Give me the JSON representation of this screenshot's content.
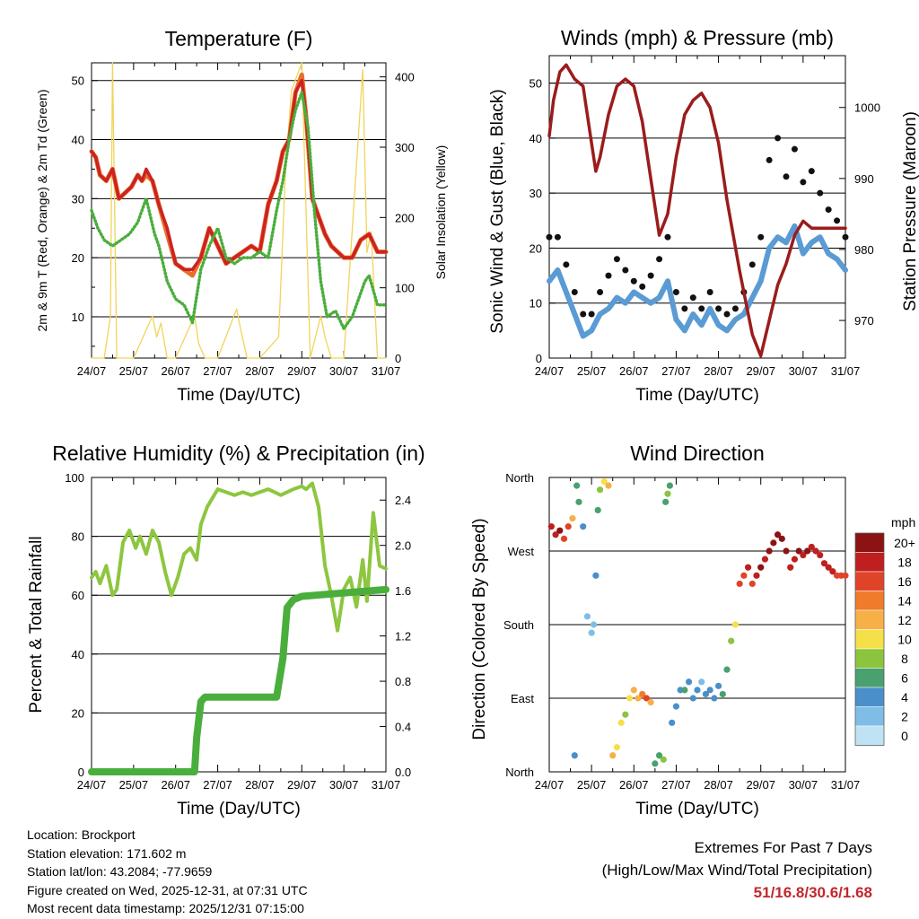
{
  "chart_data": [
    {
      "type": "line",
      "title": "Temperature (F)",
      "xlabel": "Time (Day/UTC)",
      "ylabel": "2m & 9m T (Red, Orange) & 2m Td (Green)",
      "ylabel_right": "Solar Insolation (Yellow)",
      "x_ticks": [
        "24/07",
        "25/07",
        "26/07",
        "27/07",
        "28/07",
        "29/07",
        "30/07",
        "31/07"
      ],
      "ylim": [
        3,
        53
      ],
      "yticks": [
        10,
        20,
        30,
        40,
        50
      ],
      "ylim_right": [
        0,
        420
      ],
      "yticks_right": [
        0,
        100,
        200,
        300,
        400
      ],
      "series": [
        {
          "name": "2m T",
          "color": "#e8702a",
          "x": [
            0,
            0.1,
            0.2,
            0.35,
            0.5,
            0.65,
            0.8,
            0.95,
            1.1,
            1.2,
            1.3,
            1.45,
            1.6,
            1.8,
            2.0,
            2.2,
            2.4,
            2.6,
            2.8,
            3.0,
            3.2,
            3.4,
            3.6,
            3.8,
            4.0,
            4.2,
            4.4,
            4.55,
            4.7,
            4.85,
            5.0,
            5.1,
            5.25,
            5.4,
            5.55,
            5.7,
            5.85,
            6.0,
            6.2,
            6.4,
            6.6,
            6.8,
            7.0
          ],
          "values": [
            38,
            37,
            34,
            33,
            35,
            30,
            31,
            32,
            34,
            33,
            34,
            33,
            29,
            24,
            19,
            18,
            17,
            20,
            25,
            22,
            19,
            20,
            21,
            22,
            21,
            29,
            33,
            38,
            40,
            48,
            51,
            44,
            30,
            27,
            24,
            22,
            21,
            20,
            20,
            23,
            24,
            21,
            21
          ]
        },
        {
          "name": "9m T",
          "color": "#cc2222",
          "x": [
            0,
            0.1,
            0.2,
            0.35,
            0.5,
            0.65,
            0.8,
            0.95,
            1.1,
            1.2,
            1.3,
            1.45,
            1.6,
            1.8,
            2.0,
            2.2,
            2.4,
            2.6,
            2.8,
            3.0,
            3.2,
            3.4,
            3.6,
            3.8,
            4.0,
            4.2,
            4.4,
            4.55,
            4.7,
            4.85,
            5.0,
            5.1,
            5.25,
            5.4,
            5.55,
            5.7,
            5.85,
            6.0,
            6.2,
            6.4,
            6.6,
            6.8,
            7.0
          ],
          "values": [
            38,
            37,
            34,
            33,
            35,
            30,
            31,
            32,
            34,
            33,
            35,
            33,
            29,
            25,
            19,
            18,
            18,
            20,
            25,
            22,
            19,
            20,
            21,
            22,
            21,
            29,
            33,
            38,
            40,
            48,
            50,
            44,
            30,
            27,
            24,
            22,
            21,
            20,
            20,
            23,
            24,
            21,
            21
          ]
        },
        {
          "name": "2m Td",
          "color": "#4aae3c",
          "x": [
            0,
            0.15,
            0.3,
            0.5,
            0.7,
            0.9,
            1.1,
            1.3,
            1.5,
            1.6,
            1.8,
            2.0,
            2.2,
            2.4,
            2.6,
            2.8,
            3.0,
            3.2,
            3.4,
            3.6,
            3.8,
            4.0,
            4.2,
            4.4,
            4.55,
            4.7,
            4.85,
            5.0,
            5.15,
            5.3,
            5.45,
            5.6,
            5.8,
            6.0,
            6.2,
            6.4,
            6.5,
            6.6,
            6.8,
            7.0
          ],
          "values": [
            28,
            25,
            23,
            22,
            23,
            24,
            26,
            30,
            24,
            22,
            16,
            13,
            12,
            9,
            18,
            22,
            25,
            20,
            19,
            20,
            20,
            21,
            20,
            28,
            33,
            40,
            45,
            48,
            42,
            28,
            16,
            10,
            11,
            8,
            10,
            14,
            16,
            17,
            12,
            12
          ]
        },
        {
          "name": "Solar Insolation",
          "color": "#f2d35a",
          "axis": "right",
          "x": [
            0,
            0.3,
            0.45,
            0.5,
            0.6,
            1.0,
            1.45,
            1.55,
            1.65,
            1.8,
            2.0,
            2.45,
            2.55,
            2.7,
            3.0,
            3.45,
            3.55,
            3.7,
            4.0,
            4.45,
            4.6,
            4.75,
            5.0,
            5.2,
            5.45,
            5.55,
            5.7,
            6.0,
            6.45,
            6.55,
            6.65,
            6.8,
            7.0
          ],
          "values": [
            0,
            0,
            60,
            420,
            0,
            0,
            60,
            30,
            50,
            0,
            0,
            60,
            20,
            0,
            0,
            70,
            40,
            0,
            0,
            30,
            250,
            380,
            420,
            0,
            60,
            30,
            0,
            0,
            410,
            150,
            180,
            0,
            0
          ]
        }
      ]
    },
    {
      "type": "line",
      "title": "Winds (mph) & Pressure (mb)",
      "xlabel": "Time (Day/UTC)",
      "ylabel": "Sonic Wind & Gust (Blue, Black)",
      "ylabel_right": "Station Pressure (Maroon)",
      "x_ticks": [
        "24/07",
        "25/07",
        "26/07",
        "27/07",
        "28/07",
        "29/07",
        "30/07",
        "31/07"
      ],
      "ylim": [
        0,
        55
      ],
      "yticks": [
        0,
        10,
        20,
        30,
        40,
        50
      ],
      "ylim_right": [
        964.7,
        1007.3
      ],
      "yticks_right": [
        970,
        980,
        990,
        1000
      ],
      "series": [
        {
          "name": "Sonic Wind",
          "color": "#5a9bd4",
          "x": [
            0,
            0.2,
            0.4,
            0.6,
            0.8,
            1.0,
            1.2,
            1.4,
            1.6,
            1.8,
            2.0,
            2.2,
            2.4,
            2.6,
            2.8,
            3.0,
            3.2,
            3.4,
            3.6,
            3.8,
            4.0,
            4.2,
            4.4,
            4.6,
            4.8,
            5.0,
            5.2,
            5.4,
            5.6,
            5.8,
            6.0,
            6.2,
            6.4,
            6.6,
            6.8,
            7.0
          ],
          "values": [
            14,
            16,
            12,
            8,
            4,
            5,
            8,
            9,
            11,
            10,
            12,
            11,
            10,
            11,
            14,
            7,
            5,
            8,
            6,
            9,
            6,
            5,
            7,
            8,
            11,
            14,
            20,
            22,
            21,
            24,
            19,
            21,
            22,
            19,
            18,
            16
          ]
        },
        {
          "name": "Gust",
          "color": "#111111",
          "x": [
            0,
            0.2,
            0.4,
            0.6,
            0.8,
            1.0,
            1.2,
            1.4,
            1.6,
            1.8,
            2.0,
            2.2,
            2.4,
            2.6,
            2.8,
            3.0,
            3.2,
            3.4,
            3.6,
            3.8,
            4.0,
            4.2,
            4.4,
            4.6,
            4.8,
            5.0,
            5.2,
            5.4,
            5.6,
            5.8,
            6.0,
            6.2,
            6.4,
            6.6,
            6.8,
            7.0
          ],
          "values": [
            22,
            22,
            17,
            12,
            8,
            8,
            12,
            15,
            18,
            16,
            14,
            13,
            15,
            18,
            22,
            12,
            9,
            11,
            9,
            12,
            9,
            8,
            9,
            12,
            17,
            22,
            36,
            40,
            33,
            38,
            32,
            34,
            30,
            27,
            25,
            22
          ]
        },
        {
          "name": "Station Pressure",
          "color": "#9b1c1c",
          "axis": "right",
          "x": [
            0,
            0.1,
            0.25,
            0.4,
            0.6,
            0.8,
            1.0,
            1.1,
            1.2,
            1.4,
            1.6,
            1.8,
            2.0,
            2.2,
            2.4,
            2.6,
            2.8,
            3.0,
            3.2,
            3.4,
            3.6,
            3.8,
            4.0,
            4.2,
            4.5,
            4.8,
            5.0,
            5.2,
            5.4,
            5.6,
            5.8,
            6.0,
            6.2,
            6.4,
            6.6,
            6.8,
            7.0
          ],
          "values": [
            996,
            1001,
            1005,
            1006,
            1004,
            1003,
            995,
            991,
            993,
            999,
            1003,
            1004,
            1003,
            998,
            990,
            982,
            985,
            993,
            999,
            1001,
            1002,
            1000,
            995,
            987,
            977,
            968,
            965,
            970,
            975,
            978,
            982,
            984,
            983,
            983,
            983,
            983,
            983
          ]
        }
      ]
    },
    {
      "type": "line",
      "title": "Relative Humidity (%) & Precipitation (in)",
      "xlabel": "Time (Day/UTC)",
      "ylabel": "Percent & Total Rainfall",
      "x_ticks": [
        "24/07",
        "25/07",
        "26/07",
        "27/07",
        "28/07",
        "29/07",
        "30/07",
        "31/07"
      ],
      "ylim": [
        0,
        100
      ],
      "yticks": [
        0,
        20,
        40,
        60,
        80,
        100
      ],
      "ylim_right": [
        0,
        2.6
      ],
      "yticks_right": [
        "0.0",
        "0.4",
        "0.8",
        "1.2",
        "1.6",
        "2.0",
        "2.4"
      ],
      "series": [
        {
          "name": "Relative Humidity",
          "color": "#8dc63f",
          "x": [
            0,
            0.1,
            0.2,
            0.35,
            0.5,
            0.6,
            0.75,
            0.9,
            1.05,
            1.15,
            1.3,
            1.45,
            1.6,
            1.75,
            1.9,
            2.05,
            2.2,
            2.35,
            2.5,
            2.6,
            2.75,
            3.0,
            3.2,
            3.4,
            3.6,
            3.8,
            4.0,
            4.2,
            4.5,
            4.8,
            5.0,
            5.1,
            5.25,
            5.4,
            5.55,
            5.7,
            5.85,
            6.0,
            6.15,
            6.3,
            6.45,
            6.55,
            6.7,
            6.85,
            7.0
          ],
          "values": [
            66,
            68,
            64,
            70,
            60,
            62,
            78,
            82,
            76,
            80,
            74,
            82,
            78,
            68,
            60,
            66,
            74,
            76,
            72,
            84,
            90,
            96,
            95,
            94,
            95,
            94,
            95,
            96,
            94,
            96,
            97,
            96,
            98,
            90,
            70,
            60,
            48,
            62,
            66,
            56,
            72,
            58,
            88,
            70,
            69
          ]
        },
        {
          "name": "Total Precipitation",
          "color": "#4aae3c",
          "axis": "right",
          "x": [
            0,
            2.45,
            2.5,
            2.6,
            2.7,
            4.4,
            4.55,
            4.65,
            4.8,
            5.0,
            7.0
          ],
          "values": [
            0,
            0,
            0.3,
            0.62,
            0.66,
            0.66,
            1.0,
            1.45,
            1.52,
            1.55,
            1.61
          ]
        }
      ]
    },
    {
      "type": "scatter",
      "title": "Wind Direction",
      "xlabel": "Time (Day/UTC)",
      "ylabel": "Direction (Colored By Speed)",
      "x_ticks": [
        "24/07",
        "25/07",
        "26/07",
        "27/07",
        "28/07",
        "29/07",
        "30/07",
        "31/07"
      ],
      "y_ticks": [
        "North",
        "East",
        "South",
        "West",
        "North"
      ],
      "ylim": [
        0,
        360
      ],
      "colorbar": {
        "title": "mph",
        "labels": [
          "0",
          "2",
          "4",
          "6",
          "8",
          "10",
          "12",
          "14",
          "16",
          "18",
          "20+"
        ],
        "colors": [
          "#bfe3f5",
          "#7fbde6",
          "#4a8fc9",
          "#4aa06e",
          "#8cc43e",
          "#f5e04a",
          "#f6b047",
          "#f07b2c",
          "#e04428",
          "#bf1f1f",
          "#8c1313"
        ]
      },
      "series": [
        {
          "name": "Wind Direction",
          "x": [
            0.05,
            0.15,
            0.25,
            0.35,
            0.45,
            0.55,
            0.6,
            0.65,
            0.7,
            0.8,
            0.9,
            1.0,
            1.05,
            1.1,
            1.15,
            1.2,
            1.3,
            1.4,
            1.5,
            1.6,
            1.7,
            1.8,
            1.9,
            2.0,
            2.1,
            2.2,
            2.3,
            2.4,
            2.5,
            2.6,
            2.7,
            2.75,
            2.8,
            2.85,
            2.9,
            3.0,
            3.1,
            3.2,
            3.3,
            3.4,
            3.5,
            3.6,
            3.7,
            3.8,
            3.9,
            4.0,
            4.1,
            4.2,
            4.3,
            4.4,
            4.5,
            4.6,
            4.7,
            4.8,
            4.9,
            5.0,
            5.1,
            5.2,
            5.3,
            5.4,
            5.5,
            5.6,
            5.7,
            5.8,
            5.9,
            6.0,
            6.1,
            6.2,
            6.3,
            6.4,
            6.5,
            6.6,
            6.7,
            6.8,
            6.9,
            7.0
          ],
          "values": [
            300,
            290,
            295,
            285,
            300,
            310,
            20,
            350,
            330,
            300,
            190,
            170,
            180,
            240,
            320,
            345,
            355,
            350,
            20,
            30,
            60,
            70,
            90,
            100,
            90,
            95,
            90,
            85,
            10,
            20,
            15,
            330,
            340,
            350,
            60,
            80,
            100,
            100,
            110,
            90,
            100,
            110,
            95,
            100,
            90,
            105,
            95,
            125,
            160,
            180,
            230,
            240,
            250,
            230,
            240,
            250,
            260,
            270,
            280,
            290,
            285,
            270,
            250,
            260,
            270,
            265,
            270,
            275,
            270,
            265,
            255,
            250,
            245,
            240,
            240,
            240
          ],
          "speeds": [
            18,
            17,
            20,
            15,
            16,
            12,
            4,
            6,
            5,
            3,
            2,
            1,
            2,
            3,
            6,
            8,
            10,
            12,
            11,
            10,
            9,
            8,
            10,
            11,
            12,
            13,
            15,
            12,
            6,
            5,
            7,
            6,
            8,
            6,
            4,
            4,
            3,
            5,
            3,
            4,
            3,
            2,
            3,
            4,
            3,
            4,
            5,
            6,
            8,
            10,
            15,
            16,
            17,
            16,
            18,
            19,
            18,
            19,
            20,
            21,
            20,
            19,
            18,
            18,
            19,
            18,
            19,
            18,
            17,
            18,
            17,
            18,
            17,
            16,
            16,
            16
          ]
        }
      ]
    }
  ],
  "info": {
    "location": "Location: Brockport",
    "elevation": "Station elevation: 171.602 m",
    "latlon": "Station lat/lon: 43.2084; -77.9659",
    "created": "Figure created on Wed, 2025-12-31, at 07:31 UTC",
    "recent": "Most recent data timestamp: 2025/12/31 07:15:00"
  },
  "extremes": {
    "title": "Extremes For Past 7 Days",
    "subtitle": "(High/Low/Max Wind/Total Precipitation)",
    "values": "51/16.8/30.6/1.68"
  }
}
